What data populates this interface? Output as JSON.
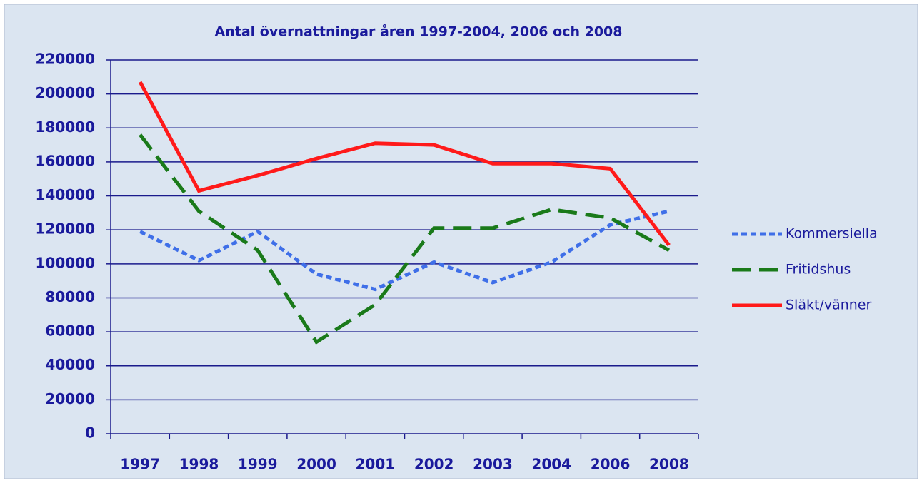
{
  "chart_data": {
    "type": "line",
    "title": "Antal övernattningar åren 1997-2004, 2006 och 2008",
    "categories": [
      "1997",
      "1998",
      "1999",
      "2000",
      "2001",
      "2002",
      "2003",
      "2004",
      "2006",
      "2008"
    ],
    "series": [
      {
        "name": "Kommersiella",
        "color": "#3f6fe8",
        "dash": "8,5",
        "values": [
          119000,
          102000,
          119000,
          94000,
          85000,
          101000,
          89000,
          101000,
          123000,
          131000
        ]
      },
      {
        "name": "Fritidshus",
        "color": "#1a7a1a",
        "dash": "26,12",
        "values": [
          176000,
          131000,
          108000,
          54000,
          76000,
          121000,
          121000,
          132000,
          127000,
          108000
        ]
      },
      {
        "name": "Släkt/vänner",
        "color": "#ff1a1a",
        "dash": "none",
        "values": [
          207000,
          143000,
          152000,
          162000,
          171000,
          170000,
          159000,
          159000,
          156000,
          111000
        ]
      }
    ],
    "ylim": [
      0,
      220000
    ],
    "yticks": [
      0,
      20000,
      40000,
      60000,
      80000,
      100000,
      120000,
      140000,
      160000,
      180000,
      200000,
      220000
    ],
    "grid": true,
    "legend": "right"
  }
}
